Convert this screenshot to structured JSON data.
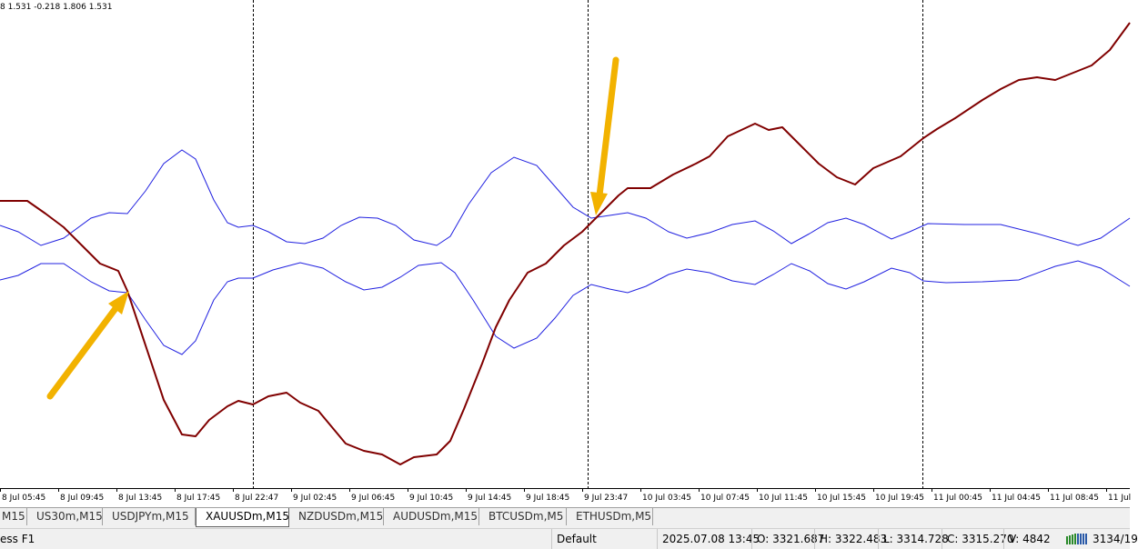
{
  "header": {
    "indicator_values": "8 1.531 -0.218 1.806 1.531"
  },
  "x_axis": {
    "labels": [
      "8 Jul 05:45",
      "8 Jul 09:45",
      "8 Jul 13:45",
      "8 Jul 17:45",
      "8 Jul 22:47",
      "9 Jul 02:45",
      "9 Jul 06:45",
      "9 Jul 10:45",
      "9 Jul 14:45",
      "9 Jul 18:45",
      "9 Jul 23:47",
      "10 Jul 03:45",
      "10 Jul 07:45",
      "10 Jul 11:45",
      "10 Jul 15:45",
      "10 Jul 19:45",
      "11 Jul 00:45",
      "11 Jul 04:45",
      "11 Jul 08:45",
      "11 Jul"
    ]
  },
  "tabs": [
    {
      "label": "M15",
      "active": false
    },
    {
      "label": "US30m,M15",
      "active": false
    },
    {
      "label": "USDJPYm,M15",
      "active": false
    },
    {
      "label": "XAUUSDm,M15",
      "active": true
    },
    {
      "label": "NZDUSDm,M15",
      "active": false
    },
    {
      "label": "AUDUSDm,M15",
      "active": false
    },
    {
      "label": "BTCUSDm,M5",
      "active": false
    },
    {
      "label": "ETHUSDm,M5",
      "active": false
    }
  ],
  "status_bar": {
    "help": "ess F1",
    "profile": "Default",
    "time": "2025.07.08 13:45",
    "open": "O: 3321.687",
    "high": "H: 3322.483",
    "low": "L: 3314.728",
    "close": "C: 3315.270",
    "volume": "V: 4842",
    "traffic": "3134/19"
  }
}
